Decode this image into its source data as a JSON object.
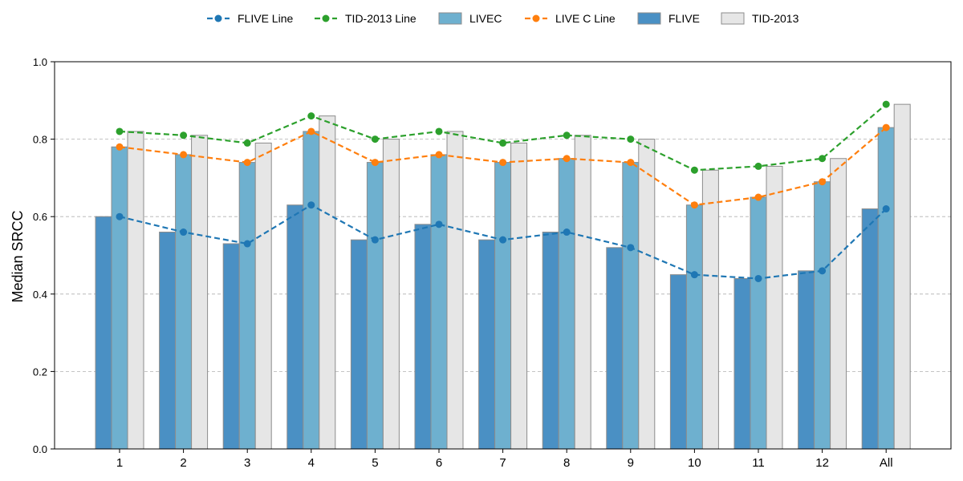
{
  "chart_data": {
    "type": "bar",
    "title": "",
    "xlabel": "",
    "ylabel": "Median SRCC",
    "ylim": [
      0,
      1.0
    ],
    "yticks": [
      "0.0",
      "0.2",
      "0.4",
      "0.6",
      "0.8",
      "1.0"
    ],
    "grid": "horizontal dashed",
    "legend_position": "top-center",
    "categories": [
      "1",
      "2",
      "3",
      "4",
      "5",
      "6",
      "7",
      "8",
      "9",
      "10",
      "11",
      "12",
      "All"
    ],
    "series": [
      {
        "name": "FLIVE",
        "kind": "bar",
        "color": "#4a90c4",
        "values": [
          0.6,
          0.56,
          0.53,
          0.63,
          0.54,
          0.58,
          0.54,
          0.56,
          0.52,
          0.45,
          0.44,
          0.46,
          0.62
        ]
      },
      {
        "name": "LIVEC",
        "kind": "bar",
        "color": "#6eb0cf",
        "values": [
          0.78,
          0.76,
          0.74,
          0.82,
          0.74,
          0.76,
          0.74,
          0.75,
          0.74,
          0.63,
          0.65,
          0.69,
          0.83
        ]
      },
      {
        "name": "TID-2013",
        "kind": "bar",
        "color": "#e6e6e6",
        "values": [
          0.82,
          0.81,
          0.79,
          0.86,
          0.8,
          0.82,
          0.79,
          0.81,
          0.8,
          0.72,
          0.73,
          0.75,
          0.89
        ]
      },
      {
        "name": "FLIVE Line",
        "kind": "line",
        "color": "#1f77b4",
        "values": [
          0.6,
          0.56,
          0.53,
          0.63,
          0.54,
          0.58,
          0.54,
          0.56,
          0.52,
          0.45,
          0.44,
          0.46,
          0.62
        ]
      },
      {
        "name": "LIVE C Line",
        "kind": "line",
        "color": "#ff7f0e",
        "values": [
          0.78,
          0.76,
          0.74,
          0.82,
          0.74,
          0.76,
          0.74,
          0.75,
          0.74,
          0.63,
          0.65,
          0.69,
          0.83
        ]
      },
      {
        "name": "TID-2013 Line",
        "kind": "line",
        "color": "#2ca02c",
        "values": [
          0.82,
          0.81,
          0.79,
          0.86,
          0.8,
          0.82,
          0.79,
          0.81,
          0.8,
          0.72,
          0.73,
          0.75,
          0.89
        ]
      }
    ],
    "legend_order": [
      "FLIVE Line",
      "TID-2013 Line",
      "LIVEC",
      "LIVE C Line",
      "FLIVE",
      "TID-2013"
    ]
  }
}
